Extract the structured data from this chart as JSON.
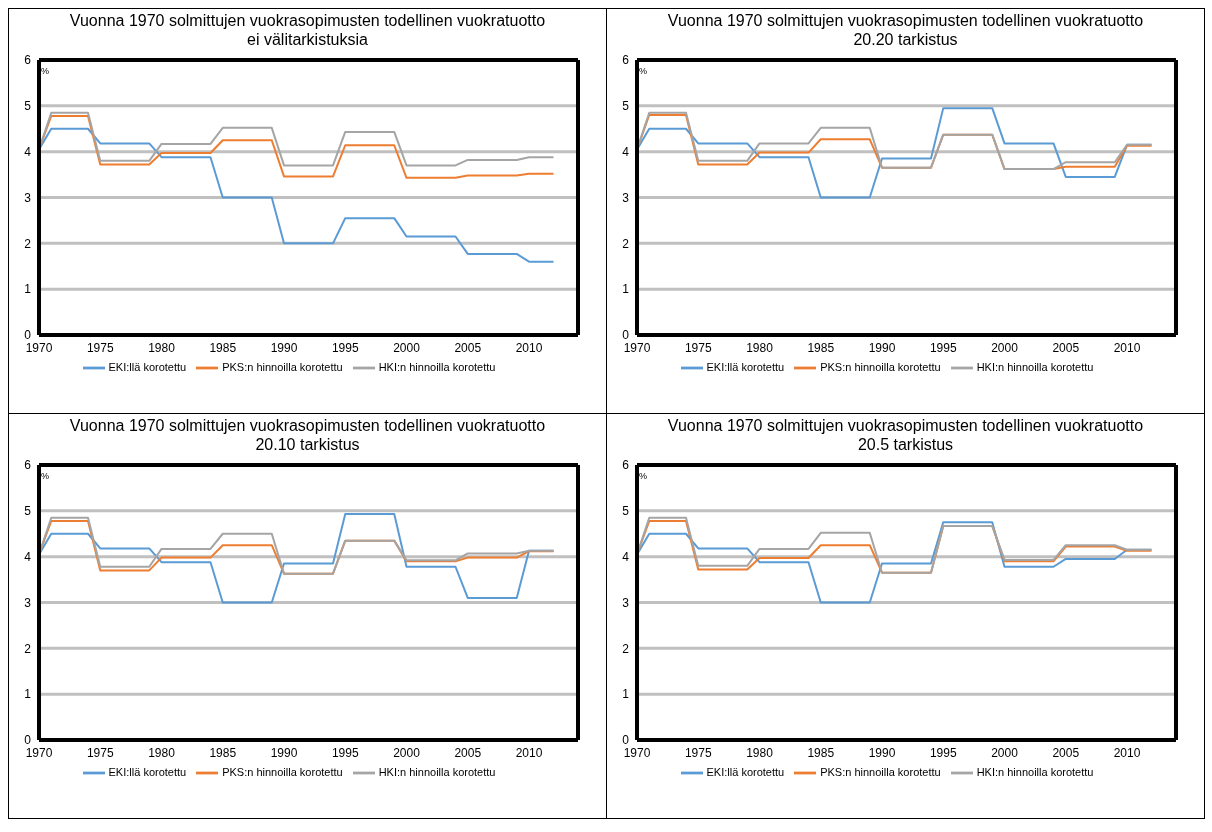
{
  "chart_data": [
    {
      "type": "line",
      "title": "Vuonna 1970 solmittujen vuokrasopimusten todellinen vuokratuotto",
      "subtitle": "ei välitarkistuksia",
      "ylabel": "%",
      "x": [
        1970,
        1971,
        1974,
        1975,
        1979,
        1980,
        1984,
        1985,
        1989,
        1990,
        1994,
        1995,
        1999,
        2000,
        2004,
        2005,
        2009,
        2010,
        2012
      ],
      "xlim": [
        1970,
        2014
      ],
      "xticks": [
        1970,
        1975,
        1980,
        1985,
        1990,
        1995,
        2000,
        2005,
        2010
      ],
      "ylim": [
        0,
        6
      ],
      "yticks": [
        0,
        1,
        2,
        3,
        4,
        5,
        6
      ],
      "grid": "y",
      "legend": "bottom",
      "marker": "none",
      "line_style": "solid",
      "series": [
        {
          "name": "EKI:llä korotettu",
          "color": "#5b9bd5",
          "values": [
            4.05,
            4.5,
            4.5,
            4.18,
            4.18,
            3.88,
            3.88,
            3.0,
            3.0,
            2.0,
            2.0,
            2.55,
            2.55,
            2.15,
            2.15,
            1.77,
            1.77,
            1.6,
            1.6
          ]
        },
        {
          "name": "PKS:n hinnoilla korotettu",
          "color": "#ed7d31",
          "values": [
            4.05,
            4.78,
            4.78,
            3.72,
            3.72,
            3.97,
            3.97,
            4.25,
            4.25,
            3.46,
            3.46,
            4.14,
            4.14,
            3.43,
            3.43,
            3.48,
            3.48,
            3.52,
            3.52
          ]
        },
        {
          "name": "HKI:n hinnoilla korotettu",
          "color": "#a5a5a5",
          "values": [
            4.05,
            4.85,
            4.85,
            3.8,
            3.8,
            4.17,
            4.17,
            4.52,
            4.52,
            3.7,
            3.7,
            4.43,
            4.43,
            3.7,
            3.7,
            3.82,
            3.82,
            3.88,
            3.88
          ]
        }
      ]
    },
    {
      "type": "line",
      "title": "Vuonna 1970 solmittujen vuokrasopimusten todellinen vuokratuotto",
      "subtitle": "20.20 tarkistus",
      "ylabel": "%",
      "x": [
        1970,
        1971,
        1974,
        1975,
        1979,
        1980,
        1984,
        1985,
        1989,
        1990,
        1994,
        1995,
        1999,
        2000,
        2004,
        2005,
        2009,
        2010,
        2012
      ],
      "xlim": [
        1970,
        2014
      ],
      "xticks": [
        1970,
        1975,
        1980,
        1985,
        1990,
        1995,
        2000,
        2005,
        2010
      ],
      "ylim": [
        0,
        6
      ],
      "yticks": [
        0,
        1,
        2,
        3,
        4,
        5,
        6
      ],
      "grid": "y",
      "legend": "bottom",
      "marker": "none",
      "line_style": "solid",
      "series": [
        {
          "name": "EKI:llä korotettu",
          "color": "#5b9bd5",
          "values": [
            4.05,
            4.5,
            4.5,
            4.18,
            4.18,
            3.88,
            3.88,
            3.0,
            3.0,
            3.85,
            3.85,
            4.95,
            4.95,
            4.18,
            4.18,
            3.45,
            3.45,
            4.15,
            4.15
          ]
        },
        {
          "name": "PKS:n hinnoilla korotettu",
          "color": "#ed7d31",
          "values": [
            4.05,
            4.8,
            4.8,
            3.72,
            3.72,
            3.98,
            3.98,
            4.27,
            4.27,
            3.65,
            3.65,
            4.37,
            4.37,
            3.62,
            3.62,
            3.67,
            3.67,
            4.13,
            4.13
          ]
        },
        {
          "name": "HKI:n hinnoilla korotettu",
          "color": "#a5a5a5",
          "values": [
            4.05,
            4.85,
            4.85,
            3.8,
            3.8,
            4.18,
            4.18,
            4.52,
            4.52,
            3.65,
            3.65,
            4.37,
            4.37,
            3.62,
            3.62,
            3.77,
            3.77,
            4.15,
            4.15
          ]
        }
      ]
    },
    {
      "type": "line",
      "title": "Vuonna 1970 solmittujen vuokrasopimusten todellinen vuokratuotto",
      "subtitle": "20.10 tarkistus",
      "ylabel": "%",
      "x": [
        1970,
        1971,
        1974,
        1975,
        1979,
        1980,
        1984,
        1985,
        1989,
        1990,
        1994,
        1995,
        1999,
        2000,
        2004,
        2005,
        2009,
        2010,
        2012
      ],
      "xlim": [
        1970,
        2014
      ],
      "xticks": [
        1970,
        1975,
        1980,
        1985,
        1990,
        1995,
        2000,
        2005,
        2010
      ],
      "ylim": [
        0,
        6
      ],
      "yticks": [
        0,
        1,
        2,
        3,
        4,
        5,
        6
      ],
      "grid": "y",
      "legend": "bottom",
      "marker": "none",
      "line_style": "solid",
      "series": [
        {
          "name": "EKI:llä korotettu",
          "color": "#5b9bd5",
          "values": [
            4.05,
            4.5,
            4.5,
            4.18,
            4.18,
            3.88,
            3.88,
            3.0,
            3.0,
            3.85,
            3.85,
            4.93,
            4.93,
            3.78,
            3.78,
            3.1,
            3.1,
            4.13,
            4.13
          ]
        },
        {
          "name": "PKS:n hinnoilla korotettu",
          "color": "#ed7d31",
          "values": [
            4.05,
            4.78,
            4.78,
            3.7,
            3.7,
            3.98,
            3.98,
            4.25,
            4.25,
            3.63,
            3.63,
            4.35,
            4.35,
            3.9,
            3.9,
            3.98,
            3.98,
            4.12,
            4.12
          ]
        },
        {
          "name": "HKI:n hinnoilla korotettu",
          "color": "#a5a5a5",
          "values": [
            4.05,
            4.85,
            4.85,
            3.78,
            3.78,
            4.17,
            4.17,
            4.5,
            4.5,
            3.63,
            3.63,
            4.35,
            4.35,
            3.92,
            3.92,
            4.07,
            4.07,
            4.13,
            4.13
          ]
        }
      ]
    },
    {
      "type": "line",
      "title": "Vuonna 1970 solmittujen vuokrasopimusten todellinen vuokratuotto",
      "subtitle": "20.5 tarkistus",
      "ylabel": "%",
      "x": [
        1970,
        1971,
        1974,
        1975,
        1979,
        1980,
        1984,
        1985,
        1989,
        1990,
        1994,
        1995,
        1999,
        2000,
        2004,
        2005,
        2009,
        2010,
        2012
      ],
      "xlim": [
        1970,
        2014
      ],
      "xticks": [
        1970,
        1975,
        1980,
        1985,
        1990,
        1995,
        2000,
        2005,
        2010
      ],
      "ylim": [
        0,
        6
      ],
      "yticks": [
        0,
        1,
        2,
        3,
        4,
        5,
        6
      ],
      "grid": "y",
      "legend": "bottom",
      "marker": "none",
      "line_style": "solid",
      "series": [
        {
          "name": "EKI:llä korotettu",
          "color": "#5b9bd5",
          "values": [
            4.05,
            4.5,
            4.5,
            4.18,
            4.18,
            3.88,
            3.88,
            3.0,
            3.0,
            3.85,
            3.85,
            4.75,
            4.75,
            3.78,
            3.78,
            3.95,
            3.95,
            4.15,
            4.15
          ]
        },
        {
          "name": "PKS:n hinnoilla korotettu",
          "color": "#ed7d31",
          "values": [
            4.05,
            4.78,
            4.78,
            3.72,
            3.72,
            3.97,
            3.97,
            4.25,
            4.25,
            3.65,
            3.65,
            4.67,
            4.67,
            3.9,
            3.9,
            4.22,
            4.22,
            4.13,
            4.13
          ]
        },
        {
          "name": "HKI:n hinnoilla korotettu",
          "color": "#a5a5a5",
          "values": [
            4.05,
            4.85,
            4.85,
            3.8,
            3.8,
            4.17,
            4.17,
            4.52,
            4.52,
            3.65,
            3.65,
            4.67,
            4.67,
            3.93,
            3.93,
            4.25,
            4.25,
            4.15,
            4.15
          ]
        }
      ]
    }
  ]
}
